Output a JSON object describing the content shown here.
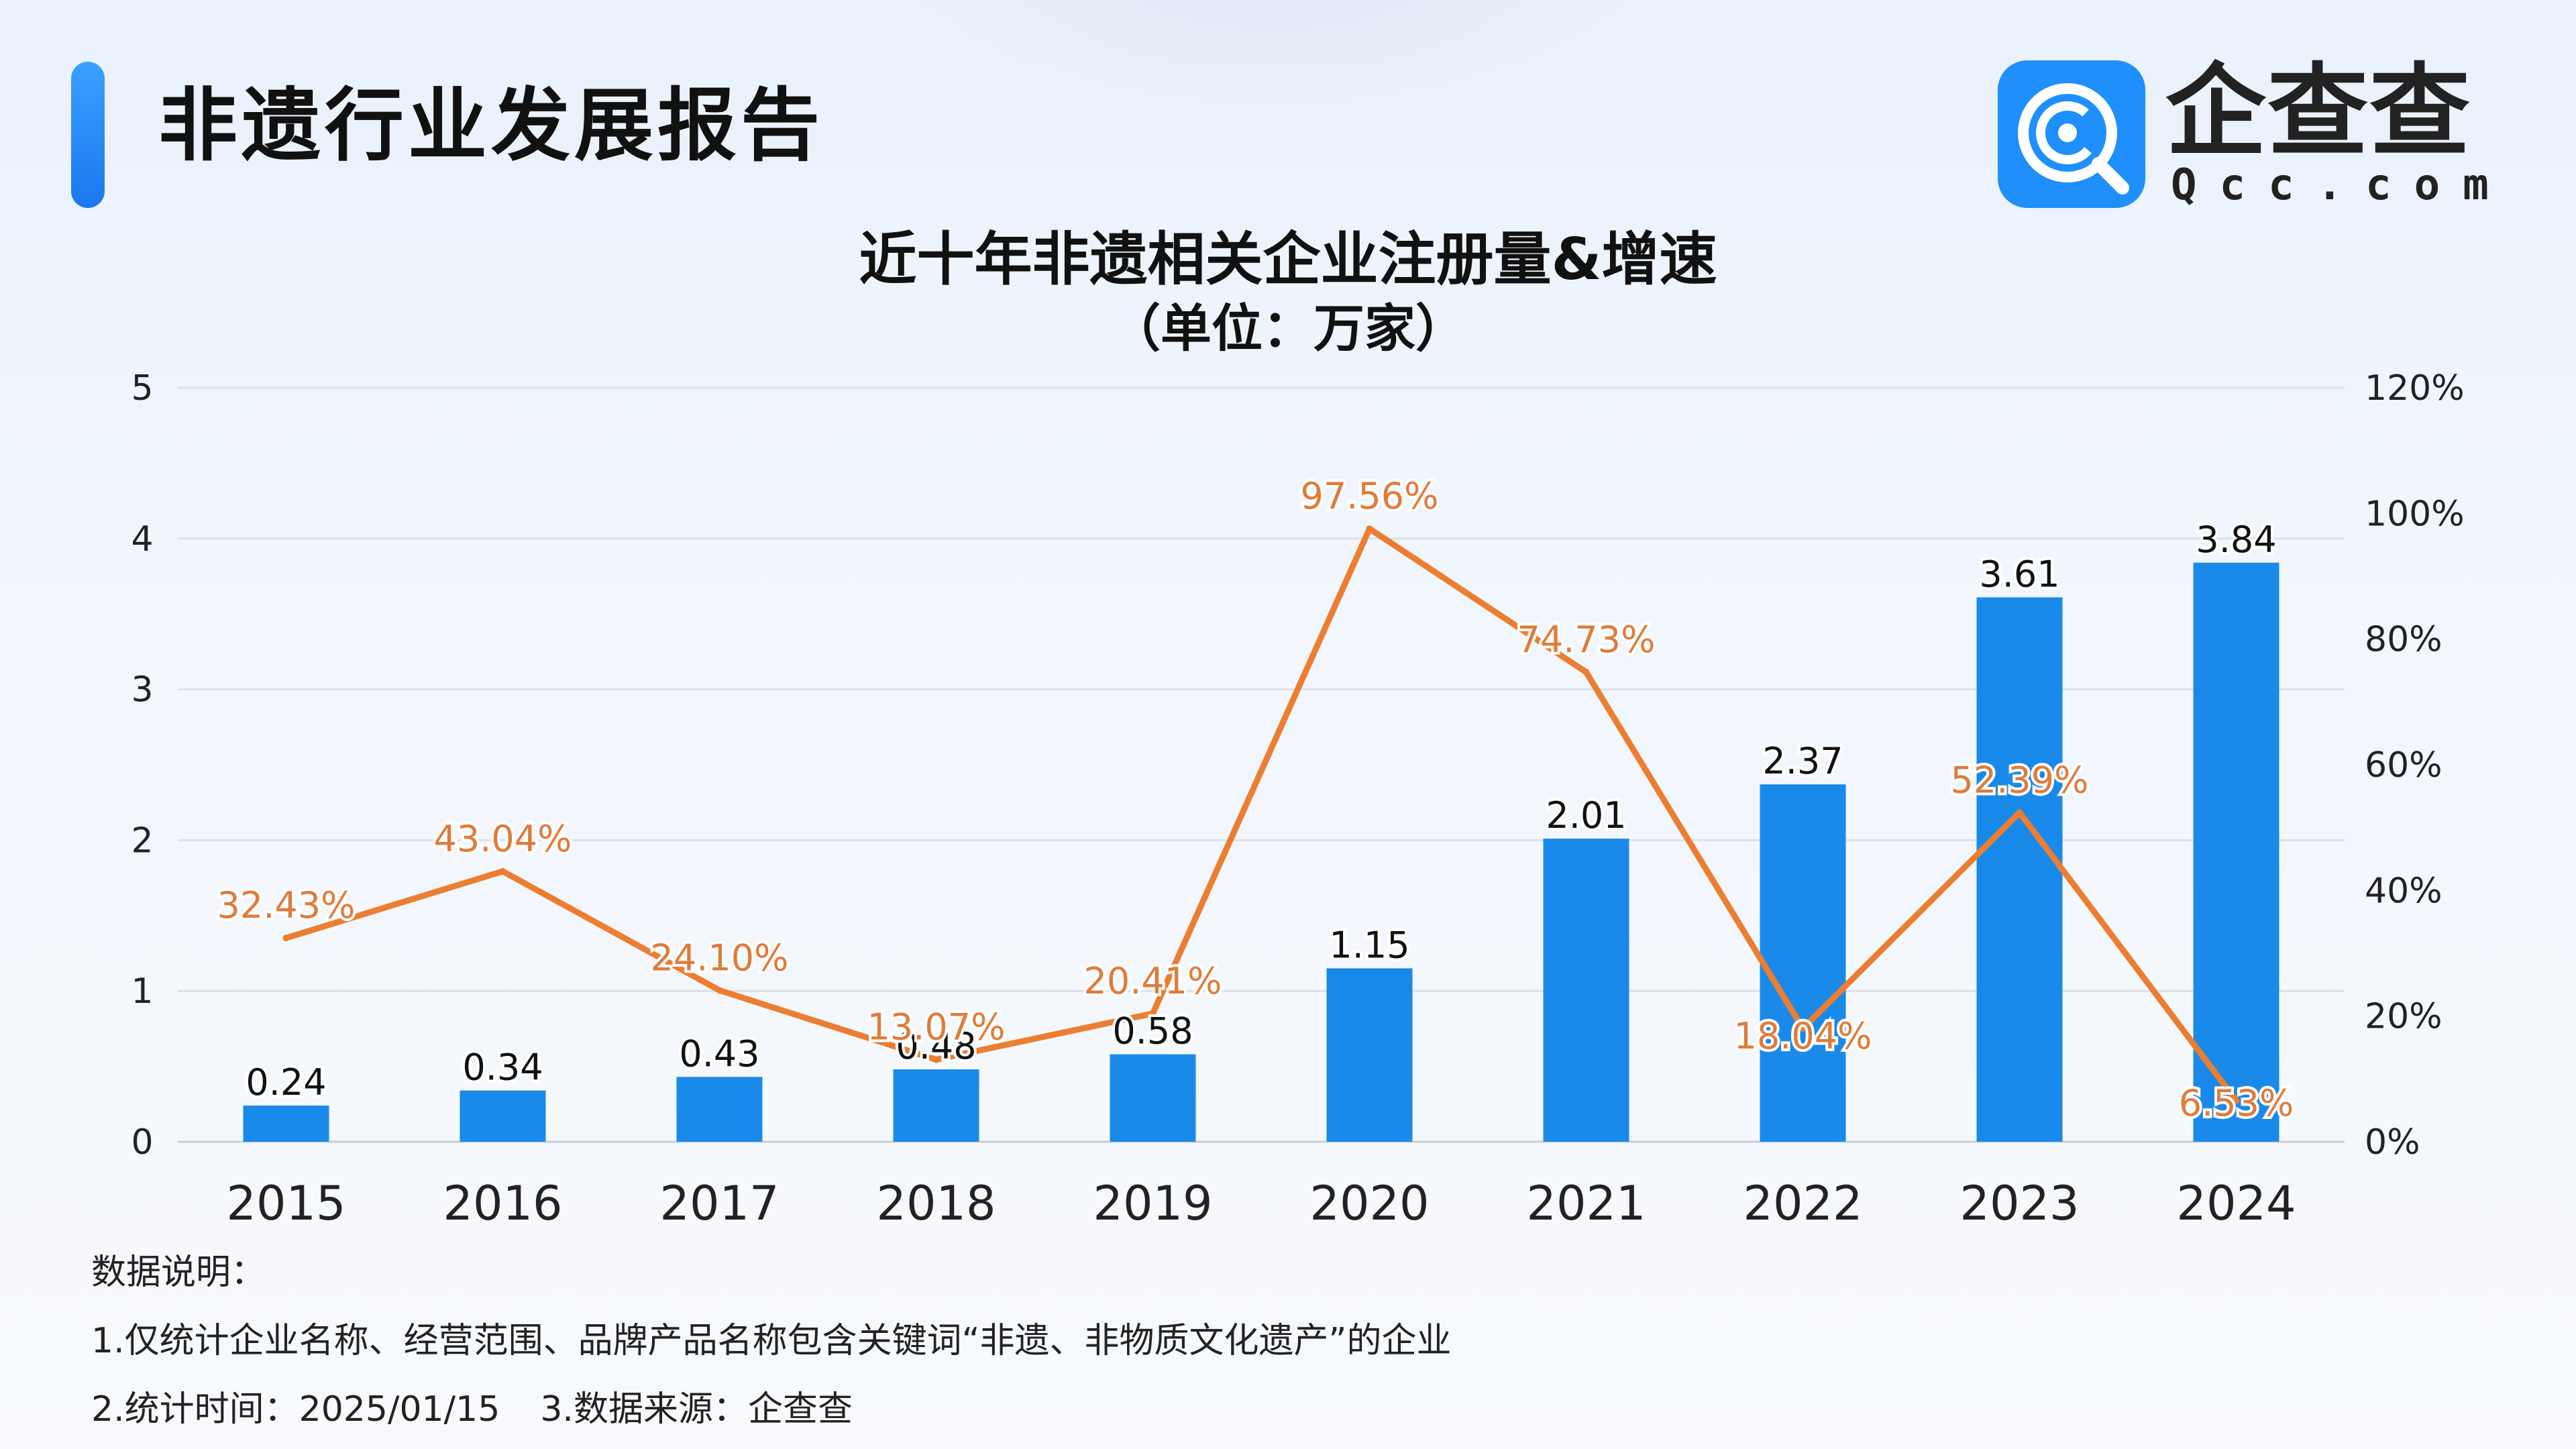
{
  "header": {
    "title": "非遗行业发展报告",
    "logo_name": "企查查",
    "logo_domain": "Qcc.com",
    "logo_icon": "qcc-logo-icon"
  },
  "chart_data": {
    "type": "bar+line",
    "title": "近十年非遗相关企业注册量&增速",
    "subtitle": "（单位：万家）",
    "categories": [
      "2015",
      "2016",
      "2017",
      "2018",
      "2019",
      "2020",
      "2021",
      "2022",
      "2023",
      "2024"
    ],
    "series": [
      {
        "type": "bar",
        "axis": "left",
        "color": "#1a8aea",
        "values": [
          0.24,
          0.34,
          0.43,
          0.48,
          0.58,
          1.15,
          2.01,
          2.37,
          3.61,
          3.84
        ],
        "labels": [
          "0.24",
          "0.34",
          "0.43",
          "0.48",
          "0.58",
          "1.15",
          "2.01",
          "2.37",
          "3.61",
          "3.84"
        ]
      },
      {
        "type": "line",
        "axis": "right",
        "color": "#ed7d31",
        "values": [
          32.43,
          43.04,
          24.1,
          13.07,
          20.41,
          97.56,
          74.73,
          18.04,
          52.39,
          6.53
        ],
        "labels": [
          "32.43%",
          "43.04%",
          "24.10%",
          "13.07%",
          "20.41%",
          "97.56%",
          "74.73%",
          "18.04%",
          "52.39%",
          "6.53%"
        ]
      }
    ],
    "y_left": {
      "range": [
        0,
        5
      ],
      "ticks": [
        "0",
        "1",
        "2",
        "3",
        "4",
        "5"
      ]
    },
    "y_right": {
      "range": [
        0,
        120
      ],
      "ticks": [
        "0%",
        "20%",
        "40%",
        "60%",
        "80%",
        "100%",
        "120%"
      ]
    },
    "grid": true,
    "legend": "none"
  },
  "notes": {
    "heading": "数据说明：",
    "line1": "1.仅统计企业名称、经营范围、品牌产品名称包含关键词“非遗、非物质文化遗产”的企业",
    "line2a": "2.统计时间：2025/01/15",
    "line2b": "3.数据来源：企查查"
  }
}
